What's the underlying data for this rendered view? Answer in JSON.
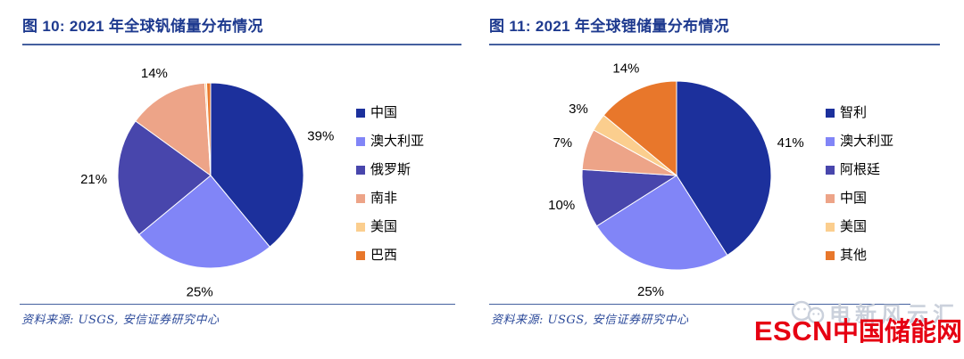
{
  "panels": [
    {
      "source": "资料来源: USGS, 安信证券研究中心"
    },
    {
      "source": "资料来源: USGS, 安信证券研究中心"
    }
  ],
  "chart_data": [
    {
      "type": "pie",
      "title": "图 10: 2021 年全球钒储量分布情况",
      "labels": [
        "中国",
        "澳大利亚",
        "俄罗斯",
        "南非",
        "美国",
        "巴西"
      ],
      "values": [
        39,
        25,
        21,
        14,
        0.3,
        0.7
      ],
      "percent_labels": [
        "39%",
        "25%",
        "21%",
        "14%",
        "",
        ""
      ],
      "colors": [
        "#1C309C",
        "#8185F7",
        "#4846AC",
        "#EDA488",
        "#FBCE8E",
        "#E8772B"
      ],
      "start_angle_deg": 0,
      "direction": "clockwise",
      "legend_position": "right",
      "grid": false
    },
    {
      "type": "pie",
      "title": "图 11: 2021 年全球锂储量分布情况",
      "labels": [
        "智利",
        "澳大利亚",
        "阿根廷",
        "中国",
        "美国",
        "其他"
      ],
      "values": [
        41,
        25,
        10,
        7,
        3,
        14
      ],
      "percent_labels": [
        "41%",
        "25%",
        "10%",
        "7%",
        "3%",
        "14%"
      ],
      "colors": [
        "#1C309C",
        "#8185F7",
        "#4846AC",
        "#EDA488",
        "#FBCE8E",
        "#E8772B"
      ],
      "start_angle_deg": 0,
      "direction": "clockwise",
      "legend_position": "right",
      "grid": false
    }
  ],
  "branding": {
    "watermark_text": "电新风云汇",
    "logo_text_en": "ESCN",
    "logo_text_zh": "中国储能网",
    "logo_color": "#E60012",
    "watermark_color": "#CBD1DC"
  },
  "style": {
    "title_color": "#1E3A8F",
    "rule_color": "#44609F",
    "source_color": "#2C4A9A",
    "label_color": "#000000"
  }
}
